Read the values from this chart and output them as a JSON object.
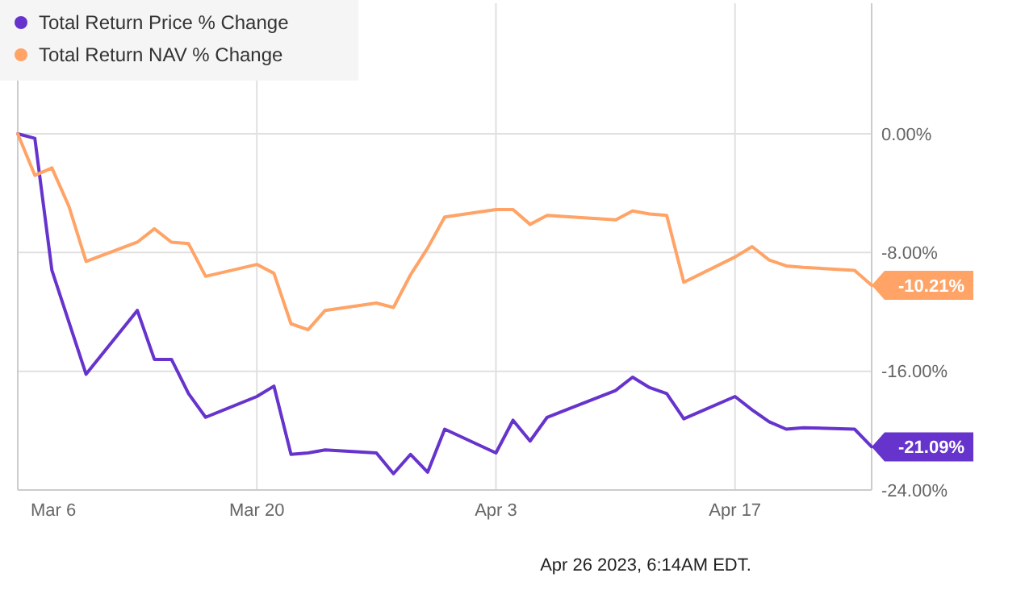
{
  "chart_data": {
    "type": "line",
    "x": [
      "2023-03-06",
      "2023-03-07",
      "2023-03-08",
      "2023-03-09",
      "2023-03-10",
      "2023-03-13",
      "2023-03-14",
      "2023-03-15",
      "2023-03-16",
      "2023-03-17",
      "2023-03-20",
      "2023-03-21",
      "2023-03-22",
      "2023-03-23",
      "2023-03-24",
      "2023-03-27",
      "2023-03-28",
      "2023-03-29",
      "2023-03-30",
      "2023-03-31",
      "2023-04-03",
      "2023-04-04",
      "2023-04-05",
      "2023-04-06",
      "2023-04-10",
      "2023-04-11",
      "2023-04-12",
      "2023-04-13",
      "2023-04-14",
      "2023-04-17",
      "2023-04-18",
      "2023-04-19",
      "2023-04-20",
      "2023-04-21",
      "2023-04-24",
      "2023-04-25"
    ],
    "series": [
      {
        "name": "Total Return Price % Change",
        "color": "#6633cc",
        "values": [
          0,
          -0.3,
          -9.2,
          -12.7,
          -16.2,
          -11.9,
          -15.2,
          -15.2,
          -17.5,
          -19.1,
          -17.7,
          -17.0,
          -21.6,
          -21.5,
          -21.3,
          -21.5,
          -22.9,
          -21.6,
          -22.8,
          -19.9,
          -21.5,
          -19.3,
          -20.7,
          -19.1,
          -17.3,
          -16.4,
          -17.1,
          -17.5,
          -19.2,
          -17.7,
          -18.6,
          -19.4,
          -19.9,
          -19.8,
          -19.9,
          -21.09
        ]
      },
      {
        "name": "Total Return NAV % Change",
        "color": "#ffa366",
        "values": [
          0,
          -2.8,
          -2.3,
          -4.9,
          -8.6,
          -7.3,
          -6.4,
          -7.3,
          -7.4,
          -9.6,
          -8.8,
          -9.4,
          -12.8,
          -13.2,
          -11.9,
          -11.4,
          -11.7,
          -9.5,
          -7.7,
          -5.6,
          -5.1,
          -5.1,
          -6.1,
          -5.5,
          -5.8,
          -5.2,
          -5.4,
          -5.5,
          -10.0,
          -8.3,
          -7.6,
          -8.5,
          -8.9,
          -9.0,
          -9.2,
          -10.21
        ]
      }
    ],
    "xlim": [
      "2023-03-06",
      "2023-04-25"
    ],
    "xticks": [
      {
        "value": "2023-03-06",
        "label": "Mar 6"
      },
      {
        "value": "2023-03-20",
        "label": "Mar 20"
      },
      {
        "value": "2023-04-03",
        "label": "Apr 3"
      },
      {
        "value": "2023-04-17",
        "label": "Apr 17"
      }
    ],
    "ylim": [
      -24,
      8.8
    ],
    "yticks": [
      {
        "value": 0,
        "label": "0.00%"
      },
      {
        "value": -8,
        "label": "-8.00%"
      },
      {
        "value": -16,
        "label": "-16.00%"
      },
      {
        "value": -24,
        "label": "-24.00%"
      }
    ],
    "grid": true,
    "legend": "top left",
    "marker": "none",
    "line_style": "solid",
    "annotations": [
      {
        "text": "-10.21%",
        "x": "2023-04-25",
        "y": -10.21
      },
      {
        "text": "-21.09%",
        "x": "2023-04-25",
        "y": -21.09
      },
      "Apr 26 2023, 6:14AM EDT."
    ]
  }
}
